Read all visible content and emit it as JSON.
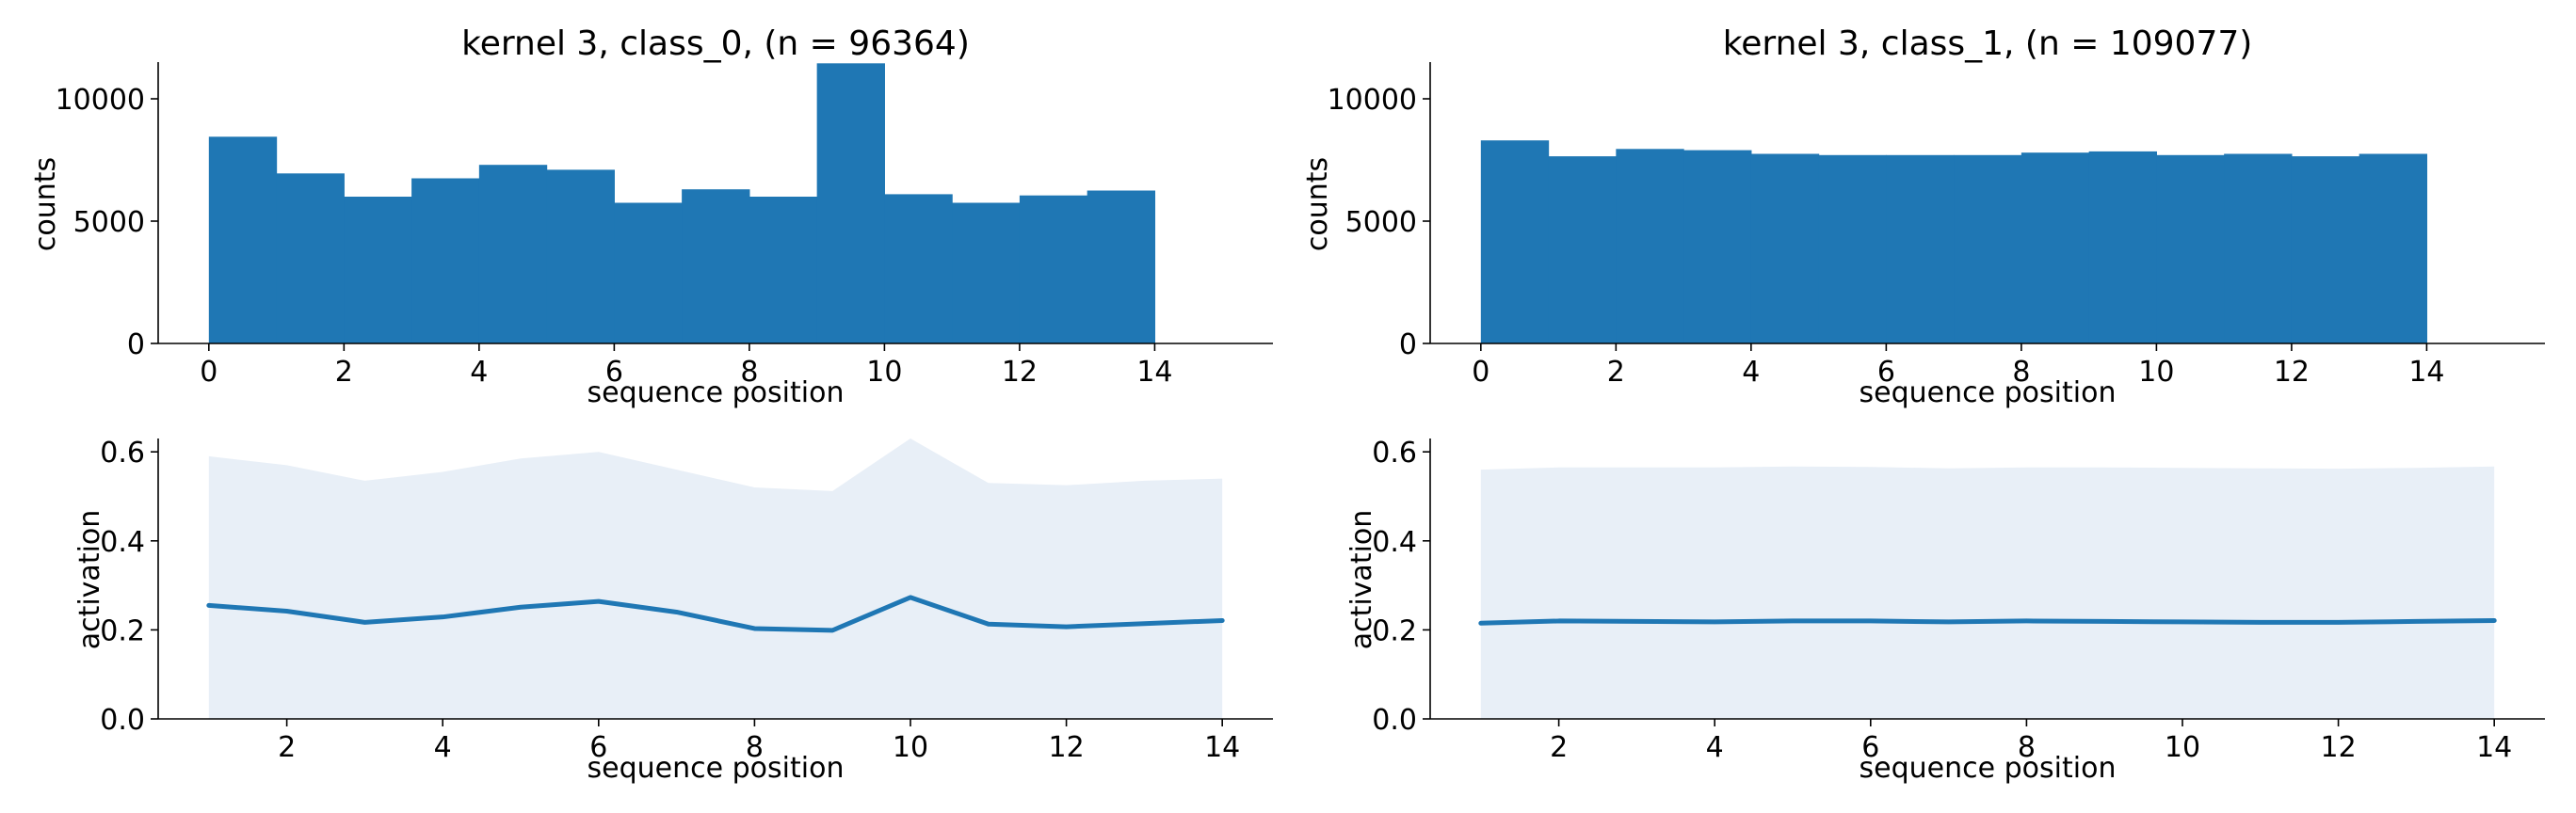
{
  "colors": {
    "bar_fill": "#1f77b4",
    "line": "#1f77b4",
    "band": "#e8eff7",
    "axis": "#000000",
    "background": "#ffffff"
  },
  "chart_data": [
    {
      "id": "hist-class0",
      "type": "bar",
      "title": "kernel 3, class_0, (n = 96364)",
      "xlabel": "sequence position",
      "ylabel": "counts",
      "xlim": [
        -0.75,
        15.75
      ],
      "ylim": [
        0,
        11500
      ],
      "xticks": [
        0,
        2,
        4,
        6,
        8,
        10,
        12,
        14
      ],
      "yticks": [
        0,
        5000,
        10000
      ],
      "bin_edges": [
        0,
        1,
        2,
        3,
        4,
        5,
        6,
        7,
        8,
        9,
        10,
        11,
        12,
        13,
        14
      ],
      "values": [
        8450,
        6950,
        6000,
        6750,
        7300,
        7100,
        5750,
        6300,
        6000,
        11450,
        6100,
        5750,
        6050,
        6250
      ]
    },
    {
      "id": "hist-class1",
      "type": "bar",
      "title": "kernel 3, class_1, (n = 109077)",
      "xlabel": "sequence position",
      "ylabel": "counts",
      "xlim": [
        -0.75,
        15.75
      ],
      "ylim": [
        0,
        11500
      ],
      "xticks": [
        0,
        2,
        4,
        6,
        8,
        10,
        12,
        14
      ],
      "yticks": [
        0,
        5000,
        10000
      ],
      "bin_edges": [
        0,
        1,
        2,
        3,
        4,
        5,
        6,
        7,
        8,
        9,
        10,
        11,
        12,
        13,
        14
      ],
      "values": [
        8300,
        7650,
        7950,
        7900,
        7750,
        7700,
        7700,
        7700,
        7800,
        7850,
        7700,
        7750,
        7650,
        7750
      ]
    },
    {
      "id": "line-class0",
      "type": "line",
      "title": "",
      "xlabel": "sequence position",
      "ylabel": "activation",
      "xlim": [
        0.35,
        14.65
      ],
      "ylim": [
        0,
        0.63
      ],
      "xticks": [
        2,
        4,
        6,
        8,
        10,
        12,
        14
      ],
      "yticks": [
        0.0,
        0.2,
        0.4,
        0.6
      ],
      "ytick_labels": [
        "0.0",
        "0.2",
        "0.4",
        "0.6"
      ],
      "x": [
        1,
        2,
        3,
        4,
        5,
        6,
        7,
        8,
        9,
        10,
        11,
        12,
        13,
        14
      ],
      "mean": [
        0.255,
        0.242,
        0.217,
        0.229,
        0.251,
        0.264,
        0.24,
        0.203,
        0.199,
        0.273,
        0.213,
        0.207,
        0.214,
        0.221
      ],
      "band_upper": [
        0.59,
        0.57,
        0.535,
        0.555,
        0.585,
        0.6,
        0.56,
        0.52,
        0.512,
        0.63,
        0.53,
        0.525,
        0.535,
        0.54
      ],
      "band_lower": [
        0,
        0,
        0,
        0,
        0,
        0,
        0,
        0,
        0,
        0,
        0,
        0,
        0,
        0
      ]
    },
    {
      "id": "line-class1",
      "type": "line",
      "title": "",
      "xlabel": "sequence position",
      "ylabel": "activation",
      "xlim": [
        0.35,
        14.65
      ],
      "ylim": [
        0,
        0.63
      ],
      "xticks": [
        2,
        4,
        6,
        8,
        10,
        12,
        14
      ],
      "yticks": [
        0.0,
        0.2,
        0.4,
        0.6
      ],
      "ytick_labels": [
        "0.0",
        "0.2",
        "0.4",
        "0.6"
      ],
      "x": [
        1,
        2,
        3,
        4,
        5,
        6,
        7,
        8,
        9,
        10,
        11,
        12,
        13,
        14
      ],
      "mean": [
        0.215,
        0.22,
        0.219,
        0.218,
        0.22,
        0.22,
        0.218,
        0.22,
        0.219,
        0.218,
        0.217,
        0.217,
        0.219,
        0.221
      ],
      "band_upper": [
        0.56,
        0.565,
        0.565,
        0.565,
        0.567,
        0.566,
        0.563,
        0.565,
        0.565,
        0.564,
        0.563,
        0.562,
        0.564,
        0.567
      ],
      "band_lower": [
        0,
        0,
        0,
        0,
        0,
        0,
        0,
        0,
        0,
        0,
        0,
        0,
        0,
        0
      ]
    }
  ]
}
